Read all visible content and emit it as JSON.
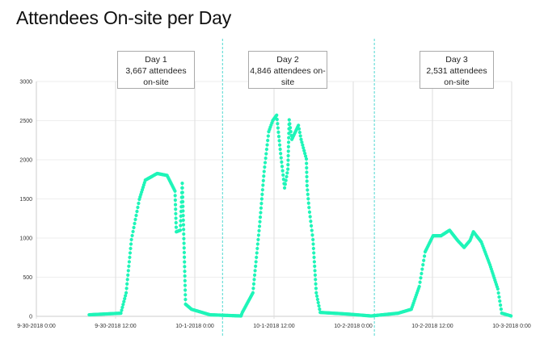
{
  "chart_data": {
    "type": "scatter",
    "title": "Attendees On-site per Day",
    "xlabel": "",
    "ylabel": "",
    "ylim": [
      0,
      3000
    ],
    "xlim_hours": [
      0,
      72
    ],
    "y_ticks": [
      "0",
      "500",
      "1000",
      "1500",
      "2000",
      "2500",
      "3000"
    ],
    "y_tick_values": [
      0,
      500,
      1000,
      1500,
      2000,
      2500,
      3000
    ],
    "x_ticks": [
      "9-30-2018 0:00",
      "9-30-2018 12:00",
      "10-1-2018 0:00",
      "10-1-2018 12:00",
      "10-2-2018 0:00",
      "10-2-2018 12:00",
      "10-3-2018 0:00"
    ],
    "x_tick_hours": [
      0,
      12,
      24,
      36,
      48,
      60,
      72
    ],
    "grid": true,
    "day_dividers_hours": [
      28.2,
      51.2
    ],
    "series": [
      {
        "name": "Attendees on-site",
        "color": "#1ef5b8",
        "points_hours_values": [
          [
            8,
            20
          ],
          [
            12.8,
            40
          ],
          [
            13.6,
            300
          ],
          [
            14.4,
            980
          ],
          [
            15.6,
            1495
          ],
          [
            16.5,
            1740
          ],
          [
            18.3,
            1825
          ],
          [
            19.8,
            1800
          ],
          [
            21,
            1600
          ],
          [
            21.2,
            1080
          ],
          [
            21.8,
            1100
          ],
          [
            22.1,
            1700
          ],
          [
            22.4,
            815
          ],
          [
            22.6,
            155
          ],
          [
            23.5,
            90
          ],
          [
            26.3,
            20
          ],
          [
            31,
            5
          ],
          [
            31.2,
            50
          ],
          [
            32.8,
            300
          ],
          [
            33.8,
            1150
          ],
          [
            34.5,
            1850
          ],
          [
            35.2,
            2360
          ],
          [
            35.8,
            2500
          ],
          [
            36.4,
            2570
          ],
          [
            37,
            2080
          ],
          [
            37.6,
            1640
          ],
          [
            38.1,
            1880
          ],
          [
            38.3,
            2510
          ],
          [
            38.7,
            2260
          ],
          [
            39.7,
            2440
          ],
          [
            40.1,
            2260
          ],
          [
            40.9,
            2010
          ],
          [
            41,
            1670
          ],
          [
            41.3,
            1390
          ],
          [
            41.9,
            980
          ],
          [
            42.4,
            300
          ],
          [
            43,
            50
          ],
          [
            47,
            30
          ],
          [
            50.7,
            5
          ],
          [
            54.8,
            40
          ],
          [
            56.8,
            90
          ],
          [
            58,
            380
          ],
          [
            58.9,
            825
          ],
          [
            60.1,
            1030
          ],
          [
            61.3,
            1030
          ],
          [
            62.6,
            1100
          ],
          [
            63.8,
            970
          ],
          [
            64.8,
            880
          ],
          [
            65.7,
            970
          ],
          [
            66.2,
            1080
          ],
          [
            67.4,
            950
          ],
          [
            68.7,
            660
          ],
          [
            69.9,
            350
          ],
          [
            70.5,
            40
          ],
          [
            71.9,
            5
          ]
        ]
      }
    ],
    "annotations": [
      {
        "lines": [
          "Day 1",
          "3,667 attendees",
          "on-site"
        ]
      },
      {
        "lines": [
          "Day 2",
          "4,846 attendees on-",
          "site"
        ]
      },
      {
        "lines": [
          "Day 3",
          "2,531 attendees",
          "on-site"
        ]
      }
    ]
  }
}
